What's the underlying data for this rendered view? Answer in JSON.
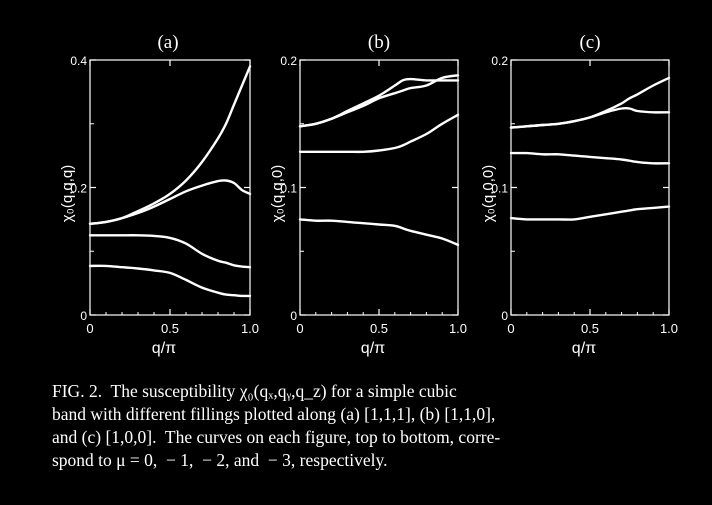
{
  "chart_data": [
    {
      "type": "line",
      "panel_label": "(a)",
      "xlabel": "q/π",
      "ylabel": "χ₀(q,q,q)",
      "xlim": [
        0,
        1.0
      ],
      "ylim": [
        0,
        0.4
      ],
      "xticks": [
        "0",
        "0.5",
        "1.0"
      ],
      "yticks": [
        "0",
        "0.2",
        "0.4"
      ],
      "x": [
        0,
        0.1,
        0.2,
        0.3,
        0.4,
        0.5,
        0.6,
        0.7,
        0.8,
        0.85,
        0.9,
        0.95,
        1.0
      ],
      "series": [
        {
          "values": [
            0.143,
            0.146,
            0.152,
            0.163,
            0.175,
            0.19,
            0.211,
            0.24,
            0.277,
            0.3,
            0.33,
            0.36,
            0.39
          ]
        },
        {
          "values": [
            0.143,
            0.146,
            0.152,
            0.16,
            0.17,
            0.182,
            0.194,
            0.203,
            0.21,
            0.211,
            0.207,
            0.196,
            0.19
          ]
        },
        {
          "values": [
            0.125,
            0.125,
            0.125,
            0.125,
            0.124,
            0.121,
            0.112,
            0.096,
            0.085,
            0.082,
            0.078,
            0.076,
            0.075
          ]
        },
        {
          "values": [
            0.077,
            0.077,
            0.075,
            0.073,
            0.07,
            0.066,
            0.055,
            0.043,
            0.035,
            0.032,
            0.031,
            0.03,
            0.03
          ]
        }
      ]
    },
    {
      "type": "line",
      "panel_label": "(b)",
      "xlabel": "q/π",
      "ylabel": "χ₀(q,q,0)",
      "xlim": [
        0,
        1.0
      ],
      "ylim": [
        0,
        0.2
      ],
      "xticks": [
        "0",
        "0.5",
        "1.0"
      ],
      "yticks": [
        "0",
        "0.1",
        "0.2"
      ],
      "x": [
        0,
        0.1,
        0.2,
        0.3,
        0.4,
        0.5,
        0.6,
        0.65,
        0.7,
        0.8,
        0.9,
        1.0
      ],
      "series": [
        {
          "values": [
            0.148,
            0.15,
            0.154,
            0.16,
            0.166,
            0.172,
            0.18,
            0.184,
            0.185,
            0.184,
            0.184,
            0.184
          ]
        },
        {
          "values": [
            0.148,
            0.15,
            0.154,
            0.159,
            0.164,
            0.17,
            0.174,
            0.176,
            0.178,
            0.18,
            0.186,
            0.188
          ]
        },
        {
          "values": [
            0.128,
            0.128,
            0.128,
            0.128,
            0.128,
            0.129,
            0.131,
            0.133,
            0.136,
            0.142,
            0.15,
            0.157
          ]
        },
        {
          "values": [
            0.075,
            0.074,
            0.074,
            0.073,
            0.072,
            0.071,
            0.07,
            0.068,
            0.066,
            0.063,
            0.06,
            0.055
          ]
        }
      ]
    },
    {
      "type": "line",
      "panel_label": "(c)",
      "xlabel": "q/π",
      "ylabel": "χ₀(q,0,0)",
      "xlim": [
        0,
        1.0
      ],
      "ylim": [
        0,
        0.2
      ],
      "xticks": [
        "0",
        "0.5",
        "1.0"
      ],
      "yticks": [
        "0",
        "0.1",
        "0.2"
      ],
      "x": [
        0,
        0.1,
        0.2,
        0.3,
        0.4,
        0.5,
        0.6,
        0.7,
        0.75,
        0.8,
        0.9,
        1.0
      ],
      "series": [
        {
          "values": [
            0.147,
            0.148,
            0.149,
            0.15,
            0.152,
            0.155,
            0.16,
            0.166,
            0.17,
            0.173,
            0.18,
            0.186
          ]
        },
        {
          "values": [
            0.147,
            0.148,
            0.149,
            0.15,
            0.152,
            0.155,
            0.159,
            0.162,
            0.162,
            0.16,
            0.159,
            0.159
          ]
        },
        {
          "values": [
            0.127,
            0.127,
            0.126,
            0.126,
            0.125,
            0.124,
            0.123,
            0.122,
            0.121,
            0.12,
            0.119,
            0.119
          ]
        },
        {
          "values": [
            0.076,
            0.075,
            0.075,
            0.075,
            0.075,
            0.077,
            0.079,
            0.081,
            0.082,
            0.083,
            0.084,
            0.085
          ]
        }
      ]
    }
  ],
  "caption": {
    "lines": [
      "FIG. 2.  The susceptibility χ₀(qₓ,qᵧ,q_z) for a simple cubic",
      "band with different fillings plotted along (a) [1,1,1], (b) [1,1,0],",
      "and (c) [1,0,0].  The curves on each figure, top to bottom, corre-",
      "spond to μ = 0,  − 1,  − 2, and  − 3, respectively."
    ]
  },
  "colors": {
    "background": "#000000",
    "foreground": "#ffffff"
  }
}
